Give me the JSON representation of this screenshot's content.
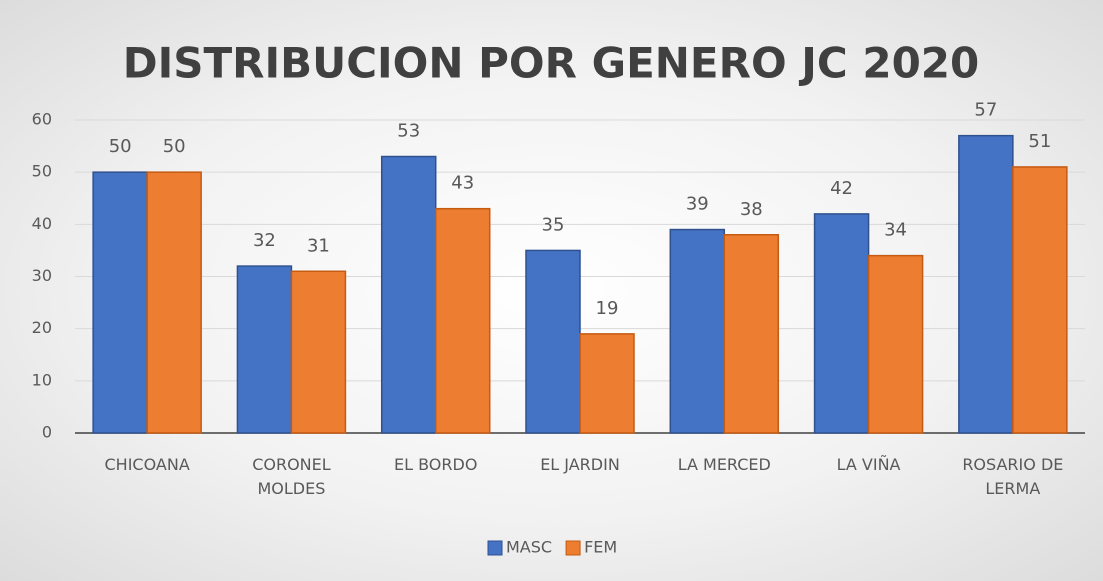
{
  "chart_data": {
    "type": "bar",
    "title": "DISTRIBUCION POR GENERO JC 2020",
    "categories": [
      "CHICOANA",
      "CORONEL MOLDES",
      "EL BORDO",
      "EL JARDIN",
      "LA MERCED",
      "LA VIÑA",
      "ROSARIO DE LERMA"
    ],
    "series": [
      {
        "name": "MASC",
        "color": "#4472c4",
        "values": [
          50,
          32,
          53,
          35,
          39,
          42,
          57
        ]
      },
      {
        "name": "FEM",
        "color": "#ed7d31",
        "values": [
          50,
          31,
          43,
          19,
          38,
          34,
          51
        ]
      }
    ],
    "ylim": [
      0,
      60
    ],
    "yticks": [
      0,
      10,
      20,
      30,
      40,
      50,
      60
    ],
    "grid": true,
    "legend": "bottom"
  }
}
